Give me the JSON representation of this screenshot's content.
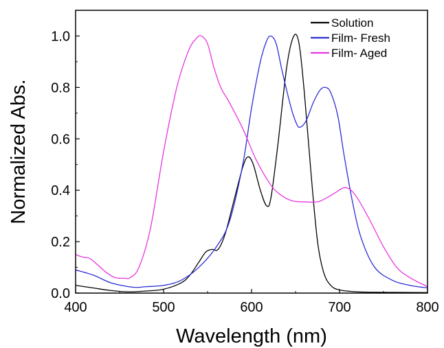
{
  "chart_data": {
    "type": "line",
    "title": "",
    "xlabel": "Wavelength (nm)",
    "ylabel": "Normalized Abs.",
    "xlim": [
      400,
      800
    ],
    "ylim": [
      0.0,
      1.1
    ],
    "x_ticks": [
      "400",
      "500",
      "600",
      "700",
      "800"
    ],
    "y_ticks": [
      "0.0",
      "0.2",
      "0.4",
      "0.6",
      "0.8",
      "1.0"
    ],
    "grid": false,
    "legend_position": "top-right",
    "series": [
      {
        "name": "Solution",
        "color": "#000000",
        "points": [
          [
            400,
            0.03
          ],
          [
            420,
            0.02
          ],
          [
            440,
            0.01
          ],
          [
            460,
            0.005
          ],
          [
            480,
            0.008
          ],
          [
            500,
            0.015
          ],
          [
            520,
            0.04
          ],
          [
            530,
            0.07
          ],
          [
            540,
            0.12
          ],
          [
            548,
            0.16
          ],
          [
            555,
            0.17
          ],
          [
            562,
            0.17
          ],
          [
            570,
            0.23
          ],
          [
            580,
            0.36
          ],
          [
            590,
            0.49
          ],
          [
            596,
            0.53
          ],
          [
            602,
            0.5
          ],
          [
            610,
            0.4
          ],
          [
            617,
            0.34
          ],
          [
            622,
            0.37
          ],
          [
            630,
            0.58
          ],
          [
            640,
            0.88
          ],
          [
            648,
            1.0
          ],
          [
            654,
            0.97
          ],
          [
            660,
            0.78
          ],
          [
            668,
            0.45
          ],
          [
            675,
            0.2
          ],
          [
            682,
            0.08
          ],
          [
            690,
            0.03
          ],
          [
            700,
            0.012
          ],
          [
            720,
            0.005
          ],
          [
            750,
            0.003
          ],
          [
            800,
            0.002
          ]
        ]
      },
      {
        "name": "Film- Fresh",
        "color": "#2b2bd6",
        "points": [
          [
            400,
            0.09
          ],
          [
            420,
            0.07
          ],
          [
            440,
            0.04
          ],
          [
            460,
            0.025
          ],
          [
            470,
            0.022
          ],
          [
            480,
            0.025
          ],
          [
            500,
            0.03
          ],
          [
            520,
            0.05
          ],
          [
            540,
            0.1
          ],
          [
            560,
            0.18
          ],
          [
            575,
            0.28
          ],
          [
            590,
            0.5
          ],
          [
            600,
            0.72
          ],
          [
            610,
            0.9
          ],
          [
            617,
            0.98
          ],
          [
            622,
            1.0
          ],
          [
            628,
            0.97
          ],
          [
            635,
            0.86
          ],
          [
            645,
            0.72
          ],
          [
            651,
            0.66
          ],
          [
            655,
            0.645
          ],
          [
            662,
            0.67
          ],
          [
            670,
            0.74
          ],
          [
            678,
            0.79
          ],
          [
            684,
            0.8
          ],
          [
            690,
            0.78
          ],
          [
            698,
            0.69
          ],
          [
            705,
            0.54
          ],
          [
            715,
            0.35
          ],
          [
            725,
            0.21
          ],
          [
            740,
            0.1
          ],
          [
            760,
            0.05
          ],
          [
            780,
            0.03
          ],
          [
            800,
            0.02
          ]
        ]
      },
      {
        "name": "Film- Aged",
        "color": "#e833e0",
        "points": [
          [
            400,
            0.15
          ],
          [
            408,
            0.14
          ],
          [
            416,
            0.135
          ],
          [
            425,
            0.11
          ],
          [
            435,
            0.08
          ],
          [
            445,
            0.06
          ],
          [
            455,
            0.058
          ],
          [
            462,
            0.06
          ],
          [
            472,
            0.1
          ],
          [
            485,
            0.25
          ],
          [
            500,
            0.55
          ],
          [
            515,
            0.8
          ],
          [
            528,
            0.94
          ],
          [
            537,
            0.99
          ],
          [
            543,
            1.0
          ],
          [
            550,
            0.97
          ],
          [
            557,
            0.88
          ],
          [
            565,
            0.8
          ],
          [
            575,
            0.74
          ],
          [
            590,
            0.64
          ],
          [
            605,
            0.52
          ],
          [
            620,
            0.43
          ],
          [
            630,
            0.39
          ],
          [
            645,
            0.36
          ],
          [
            660,
            0.355
          ],
          [
            675,
            0.355
          ],
          [
            685,
            0.37
          ],
          [
            695,
            0.39
          ],
          [
            705,
            0.41
          ],
          [
            713,
            0.4
          ],
          [
            722,
            0.36
          ],
          [
            735,
            0.28
          ],
          [
            750,
            0.18
          ],
          [
            765,
            0.1
          ],
          [
            780,
            0.06
          ],
          [
            800,
            0.025
          ]
        ]
      }
    ]
  }
}
